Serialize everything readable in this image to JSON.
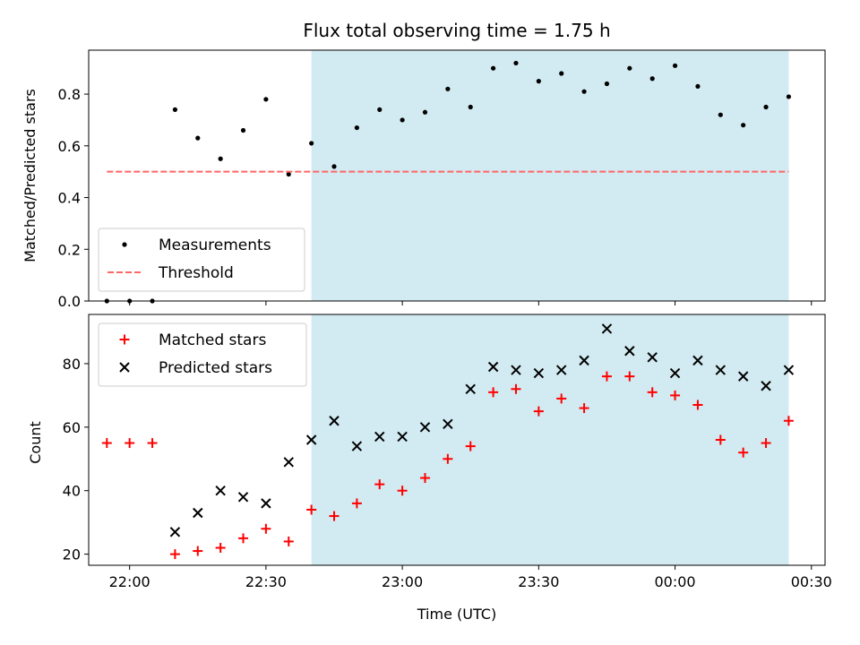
{
  "chart_data": [
    {
      "type": "scatter",
      "title": "Flux total observing time = 1.75 h",
      "xlabel": "",
      "ylabel": "Matched/Predicted stars",
      "xlim": [
        "21:51",
        "00:33"
      ],
      "ylim": [
        0,
        0.97
      ],
      "x_ticks": [
        "22:00",
        "22:30",
        "23:00",
        "23:30",
        "00:00",
        "00:30"
      ],
      "y_ticks": [
        "0.0",
        "0.2",
        "0.4",
        "0.6",
        "0.8"
      ],
      "shaded_region": {
        "x": [
          "22:40",
          "00:25"
        ],
        "color": "#add8e6"
      },
      "series": [
        {
          "name": "Measurements",
          "marker": "dot",
          "color": "#000000",
          "x": [
            "21:55",
            "22:00",
            "22:05",
            "22:10",
            "22:15",
            "22:20",
            "22:25",
            "22:30",
            "22:35",
            "22:40",
            "22:45",
            "22:50",
            "22:55",
            "23:00",
            "23:05",
            "23:10",
            "23:15",
            "23:20",
            "23:25",
            "23:30",
            "23:35",
            "23:40",
            "23:45",
            "23:50",
            "23:55",
            "00:00",
            "00:05",
            "00:10",
            "00:15",
            "00:20",
            "00:25"
          ],
          "values": [
            0.0,
            0.0,
            0.0,
            0.74,
            0.63,
            0.55,
            0.66,
            0.78,
            0.49,
            0.61,
            0.52,
            0.67,
            0.74,
            0.7,
            0.73,
            0.82,
            0.75,
            0.9,
            0.92,
            0.85,
            0.88,
            0.81,
            0.84,
            0.9,
            0.86,
            0.91,
            0.83,
            0.72,
            0.68,
            0.75,
            0.79
          ]
        },
        {
          "name": "Threshold",
          "style": "dashed",
          "color": "#ff6666",
          "x": [
            "21:55",
            "00:25"
          ],
          "values": [
            0.5,
            0.5
          ]
        }
      ],
      "legend": "lower-left"
    },
    {
      "type": "scatter",
      "title": "",
      "xlabel": "Time (UTC)",
      "ylabel": "Count",
      "xlim": [
        "21:51",
        "00:33"
      ],
      "ylim": [
        16.5,
        95.5
      ],
      "x_ticks": [
        "22:00",
        "22:30",
        "23:00",
        "23:30",
        "00:00",
        "00:30"
      ],
      "y_ticks": [
        "20",
        "40",
        "60",
        "80"
      ],
      "shaded_region": {
        "x": [
          "22:40",
          "00:25"
        ],
        "color": "#add8e6"
      },
      "series": [
        {
          "name": "Matched stars",
          "marker": "plus",
          "color": "#ff0000",
          "x": [
            "21:55",
            "22:00",
            "22:05",
            "22:10",
            "22:15",
            "22:20",
            "22:25",
            "22:30",
            "22:35",
            "22:40",
            "22:45",
            "22:50",
            "22:55",
            "23:00",
            "23:05",
            "23:10",
            "23:15",
            "23:20",
            "23:25",
            "23:30",
            "23:35",
            "23:40",
            "23:45",
            "23:50",
            "23:55",
            "00:00",
            "00:05",
            "00:10",
            "00:15",
            "00:20",
            "00:25"
          ],
          "values": [
            55,
            55,
            55,
            20,
            21,
            22,
            25,
            28,
            24,
            34,
            32,
            36,
            42,
            40,
            44,
            50,
            54,
            71,
            72,
            65,
            69,
            66,
            76,
            76,
            71,
            70,
            67,
            56,
            52,
            55,
            62
          ]
        },
        {
          "name": "Predicted stars",
          "marker": "x",
          "color": "#000000",
          "x": [
            "22:10",
            "22:15",
            "22:20",
            "22:25",
            "22:30",
            "22:35",
            "22:40",
            "22:45",
            "22:50",
            "22:55",
            "23:00",
            "23:05",
            "23:10",
            "23:15",
            "23:20",
            "23:25",
            "23:30",
            "23:35",
            "23:40",
            "23:45",
            "23:50",
            "23:55",
            "00:00",
            "00:05",
            "00:10",
            "00:15",
            "00:20",
            "00:25"
          ],
          "values": [
            27,
            33,
            40,
            38,
            36,
            49,
            56,
            62,
            54,
            57,
            57,
            60,
            61,
            72,
            79,
            78,
            77,
            78,
            81,
            91,
            84,
            82,
            77,
            81,
            78,
            76,
            73,
            78
          ]
        }
      ],
      "legend": "upper-left"
    }
  ]
}
